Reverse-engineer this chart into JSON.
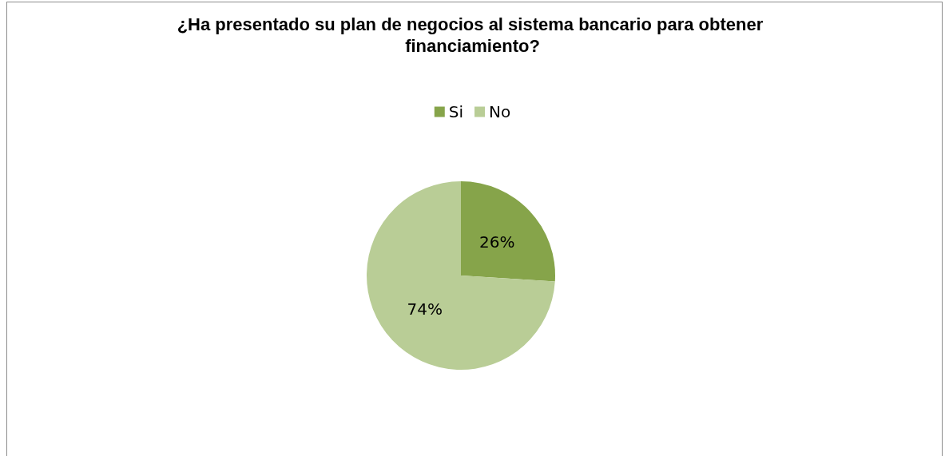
{
  "chart_data": {
    "type": "pie",
    "title": "¿Ha presentado su plan de negocios al sistema bancario para obtener financiamiento?",
    "categories": [
      "Si",
      "No"
    ],
    "values": [
      26,
      74
    ],
    "colors": [
      "#86a44a",
      "#b9cd96"
    ],
    "value_labels": [
      "26%",
      "74%"
    ],
    "legend": "top"
  }
}
